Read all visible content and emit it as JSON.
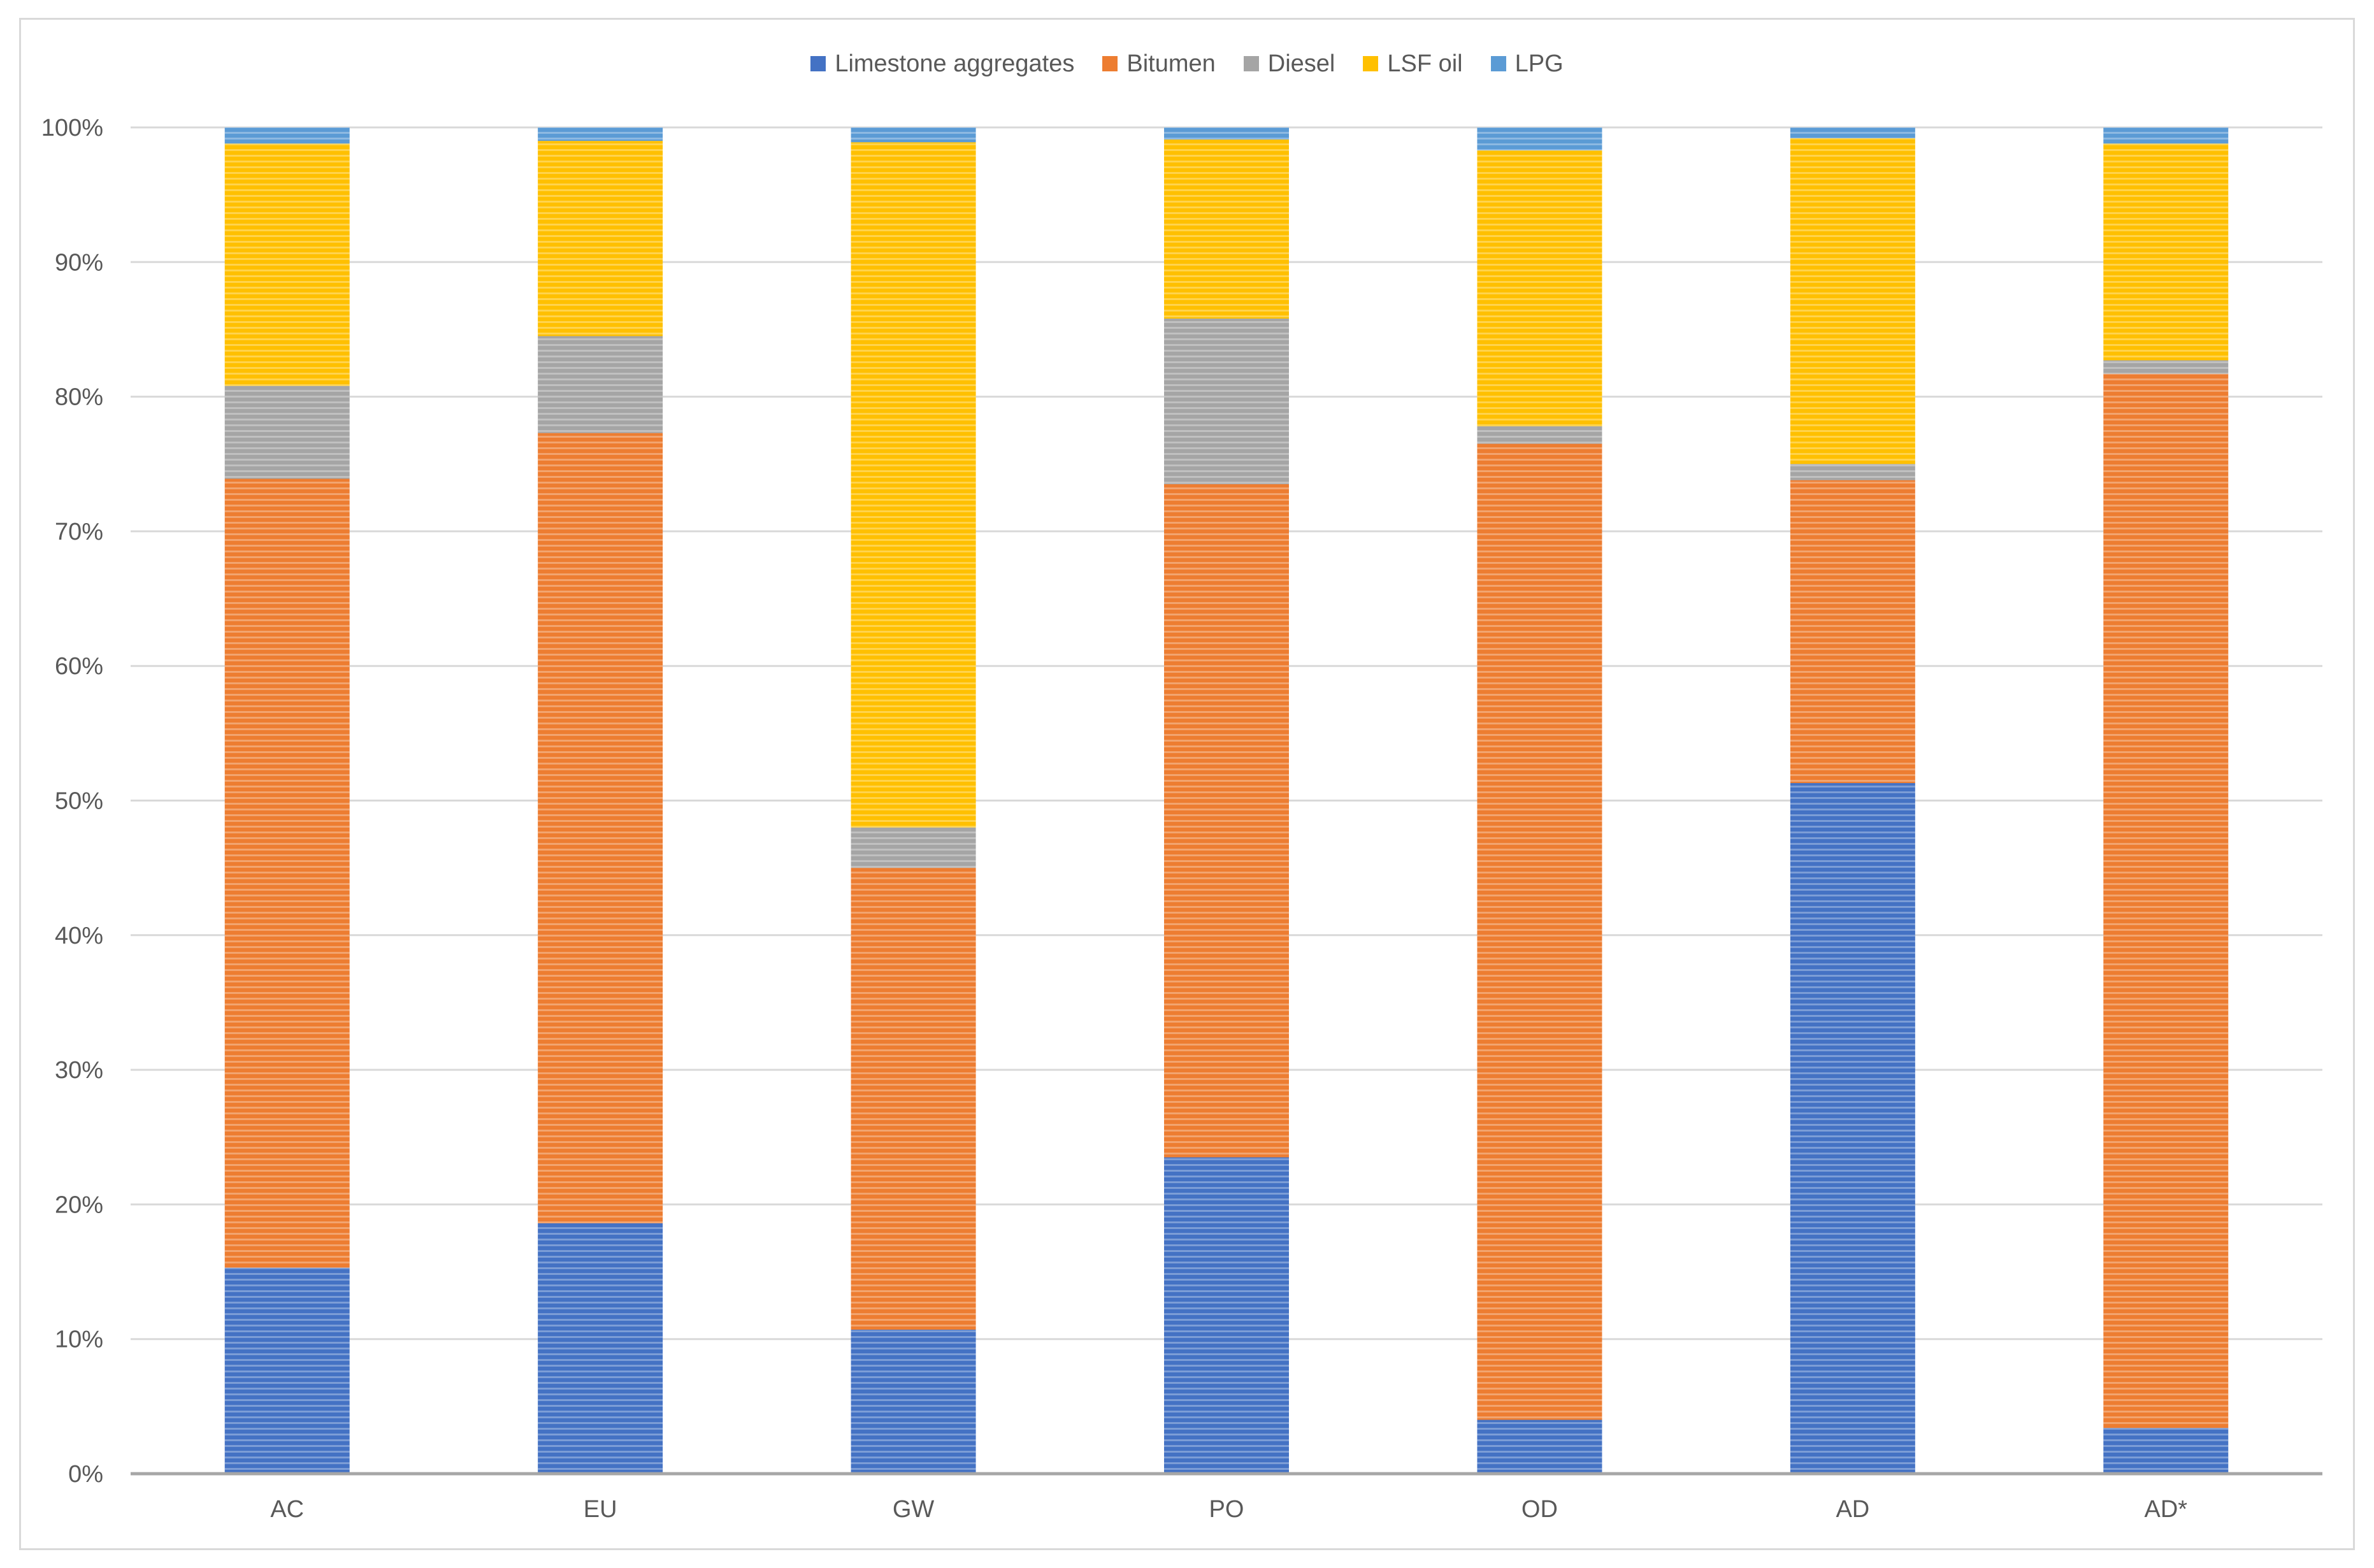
{
  "chart_data": {
    "type": "bar",
    "stacked": true,
    "title": "",
    "xlabel": "",
    "ylabel": "",
    "categories": [
      "AC",
      "EU",
      "GW",
      "PO",
      "OD",
      "AD",
      "AD*"
    ],
    "ylim": [
      0,
      100
    ],
    "yticks": [
      "0%",
      "10%",
      "20%",
      "30%",
      "40%",
      "50%",
      "60%",
      "70%",
      "80%",
      "90%",
      "100%"
    ],
    "legend_position": "top-center",
    "grid": true,
    "series": [
      {
        "name": "Limestone aggregates",
        "color": "#4472c4",
        "values": [
          15.3,
          18.6,
          10.7,
          23.5,
          4.0,
          51.3,
          3.4
        ]
      },
      {
        "name": "Bitumen",
        "color": "#ed7d31",
        "values": [
          58.6,
          58.7,
          34.3,
          50.0,
          72.5,
          22.5,
          78.3
        ]
      },
      {
        "name": "Diesel",
        "color": "#a5a5a5",
        "values": [
          6.9,
          7.2,
          3.0,
          12.3,
          1.3,
          1.2,
          1.0
        ]
      },
      {
        "name": "LSF oil",
        "color": "#ffc000",
        "values": [
          18.0,
          14.5,
          50.9,
          13.3,
          20.5,
          24.2,
          16.1
        ]
      },
      {
        "name": "LPG",
        "color": "#5b9bd5",
        "values": [
          1.2,
          1.0,
          1.1,
          0.9,
          1.7,
          0.8,
          1.2
        ]
      }
    ]
  }
}
